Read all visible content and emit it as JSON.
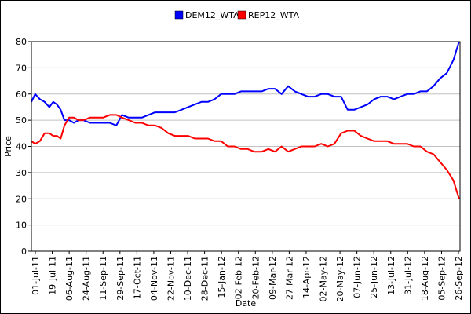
{
  "chart_data": {
    "type": "line",
    "title": "",
    "xlabel": "Date",
    "ylabel": "Price",
    "ylim": [
      0,
      80
    ],
    "y_ticks": [
      0,
      10,
      20,
      30,
      40,
      50,
      60,
      70,
      80
    ],
    "x_tick_labels": [
      "01-Jul-11",
      "19-Jul-11",
      "06-Aug-11",
      "24-Aug-11",
      "11-Sep-11",
      "29-Sep-11",
      "17-Oct-11",
      "04-Nov-11",
      "22-Nov-11",
      "10-Dec-11",
      "28-Dec-11",
      "15-Jan-12",
      "02-Feb-12",
      "20-Feb-12",
      "09-Mar-12",
      "27-Mar-12",
      "14-Apr-12",
      "02-May-12",
      "20-May-12",
      "07-Jun-12",
      "25-Jun-12",
      "13-Jul-12",
      "31-Jul-12",
      "18-Aug-12",
      "05-Sep-12",
      "26-Sep-12"
    ],
    "grid": "horizontal",
    "legend_position": "top-center",
    "series": [
      {
        "name": "DEM12_WTA",
        "color": "#0000ff",
        "x": [
          "2011-07-01",
          "2011-07-05",
          "2011-07-10",
          "2011-07-15",
          "2011-07-20",
          "2011-07-24",
          "2011-07-28",
          "2011-08-01",
          "2011-08-05",
          "2011-08-10",
          "2011-08-15",
          "2011-08-20",
          "2011-08-25",
          "2011-09-01",
          "2011-09-08",
          "2011-09-15",
          "2011-09-22",
          "2011-09-29",
          "2011-10-05",
          "2011-10-12",
          "2011-10-19",
          "2011-10-26",
          "2011-11-02",
          "2011-11-09",
          "2011-11-16",
          "2011-11-23",
          "2011-11-30",
          "2011-12-07",
          "2011-12-14",
          "2011-12-21",
          "2011-12-28",
          "2012-01-04",
          "2012-01-11",
          "2012-01-18",
          "2012-01-25",
          "2012-02-01",
          "2012-02-08",
          "2012-02-15",
          "2012-02-22",
          "2012-03-01",
          "2012-03-08",
          "2012-03-15",
          "2012-03-22",
          "2012-03-29",
          "2012-04-05",
          "2012-04-12",
          "2012-04-19",
          "2012-04-26",
          "2012-05-03",
          "2012-05-10",
          "2012-05-17",
          "2012-05-24",
          "2012-05-31",
          "2012-06-07",
          "2012-06-14",
          "2012-06-21",
          "2012-06-28",
          "2012-07-05",
          "2012-07-12",
          "2012-07-19",
          "2012-07-26",
          "2012-08-02",
          "2012-08-09",
          "2012-08-16",
          "2012-08-23",
          "2012-08-30",
          "2012-09-06",
          "2012-09-13",
          "2012-09-20",
          "2012-09-26"
        ],
        "values": [
          57,
          60,
          58,
          57,
          55,
          57,
          56,
          54,
          50,
          50,
          49,
          50,
          50,
          49,
          49,
          49,
          49,
          48,
          52,
          51,
          51,
          51,
          52,
          53,
          53,
          53,
          53,
          54,
          55,
          56,
          57,
          57,
          58,
          60,
          60,
          60,
          61,
          61,
          61,
          61,
          62,
          62,
          60,
          63,
          61,
          60,
          59,
          59,
          60,
          60,
          59,
          59,
          54,
          54,
          55,
          56,
          58,
          59,
          59,
          58,
          59,
          60,
          60,
          61,
          61,
          63,
          66,
          68,
          73,
          80
        ]
      },
      {
        "name": "REP12_WTA",
        "color": "#ff0000",
        "x": [
          "2011-07-01",
          "2011-07-05",
          "2011-07-10",
          "2011-07-15",
          "2011-07-20",
          "2011-07-24",
          "2011-07-28",
          "2011-08-01",
          "2011-08-05",
          "2011-08-10",
          "2011-08-15",
          "2011-08-20",
          "2011-08-25",
          "2011-09-01",
          "2011-09-08",
          "2011-09-15",
          "2011-09-22",
          "2011-09-29",
          "2011-10-05",
          "2011-10-12",
          "2011-10-19",
          "2011-10-26",
          "2011-11-02",
          "2011-11-09",
          "2011-11-16",
          "2011-11-23",
          "2011-11-30",
          "2011-12-07",
          "2011-12-14",
          "2011-12-21",
          "2011-12-28",
          "2012-01-04",
          "2012-01-11",
          "2012-01-18",
          "2012-01-25",
          "2012-02-01",
          "2012-02-08",
          "2012-02-15",
          "2012-02-22",
          "2012-03-01",
          "2012-03-08",
          "2012-03-15",
          "2012-03-22",
          "2012-03-29",
          "2012-04-05",
          "2012-04-12",
          "2012-04-19",
          "2012-04-26",
          "2012-05-03",
          "2012-05-10",
          "2012-05-17",
          "2012-05-24",
          "2012-05-31",
          "2012-06-07",
          "2012-06-14",
          "2012-06-21",
          "2012-06-28",
          "2012-07-05",
          "2012-07-12",
          "2012-07-19",
          "2012-07-26",
          "2012-08-02",
          "2012-08-09",
          "2012-08-16",
          "2012-08-23",
          "2012-08-30",
          "2012-09-06",
          "2012-09-13",
          "2012-09-20",
          "2012-09-26"
        ],
        "values": [
          42,
          41,
          42,
          45,
          45,
          44,
          44,
          43,
          48,
          51,
          51,
          50,
          50,
          51,
          51,
          51,
          52,
          52,
          51,
          50,
          49,
          49,
          48,
          48,
          47,
          45,
          44,
          44,
          44,
          43,
          43,
          43,
          42,
          42,
          40,
          40,
          39,
          39,
          38,
          38,
          39,
          38,
          40,
          38,
          39,
          40,
          40,
          40,
          41,
          40,
          41,
          45,
          46,
          46,
          44,
          43,
          42,
          42,
          42,
          41,
          41,
          41,
          40,
          40,
          38,
          37,
          34,
          31,
          27,
          20
        ]
      }
    ]
  }
}
